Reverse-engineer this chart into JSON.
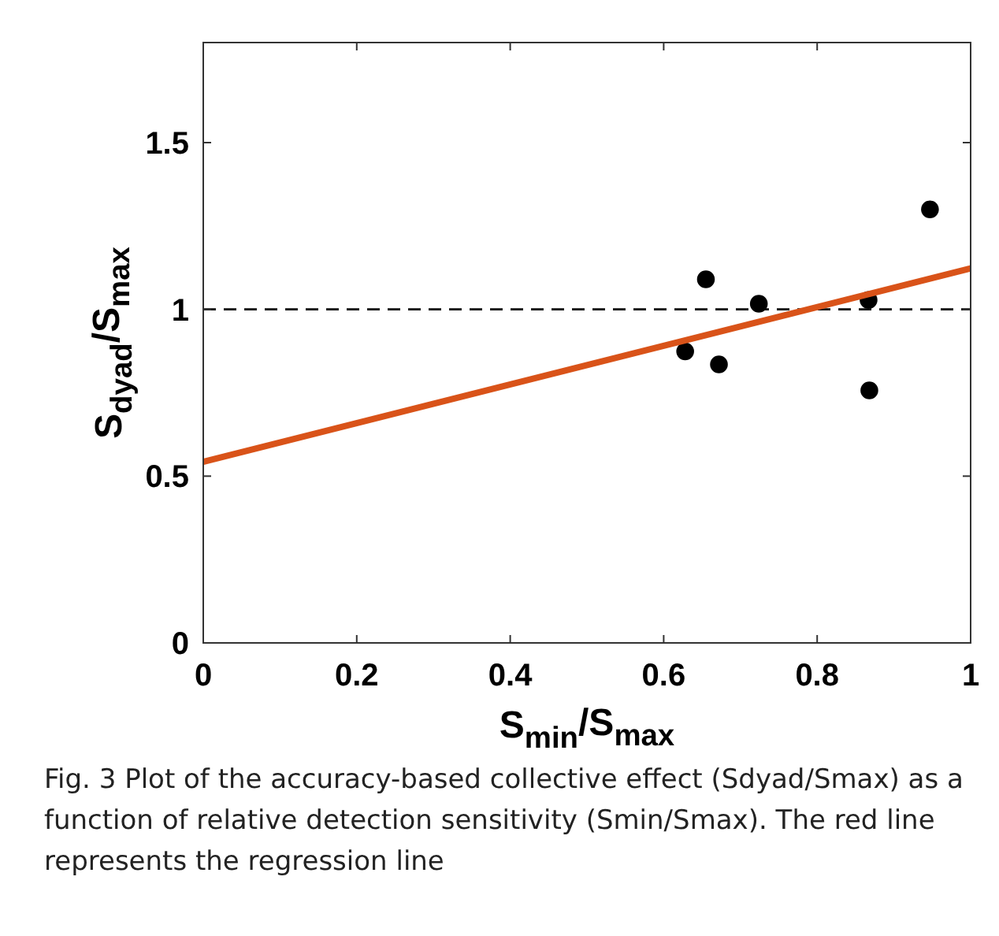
{
  "chart_data": {
    "type": "scatter",
    "xlabel": "S$_{min}$/S$_{max}$",
    "ylabel": "S$_{dyad}$/S$_{max}$",
    "xlim": [
      0,
      1
    ],
    "xticks": [
      0,
      0.2,
      0.4,
      0.6,
      0.8,
      1
    ],
    "ylim": [
      0,
      1.8
    ],
    "yticks": [
      0,
      0.5,
      1,
      1.5
    ],
    "grid": false,
    "series": [
      {
        "color": "#000000",
        "marker": "circle",
        "x": [
          0.628,
          0.655,
          0.672,
          0.724,
          0.867,
          0.868,
          0.947
        ],
        "values": [
          0.874,
          1.09,
          0.835,
          1.017,
          1.028,
          0.757,
          1.3
        ]
      },
      {
        "type": "line",
        "color": "#d95319",
        "marker": "none",
        "line_style": "solid",
        "x": [
          0,
          1
        ],
        "values": [
          0.543,
          1.123
        ]
      }
    ],
    "ref_lines": [
      {
        "axis": "y",
        "value": 1,
        "color": "#000000",
        "line_style": "dashed"
      }
    ],
    "annotations": [
      "Fig. 3 Plot of the accuracy-based collective effect (Sdyad/Smax) as a function of relative detection sensitivity (Smin/Smax). The red line represents the regression line"
    ]
  }
}
